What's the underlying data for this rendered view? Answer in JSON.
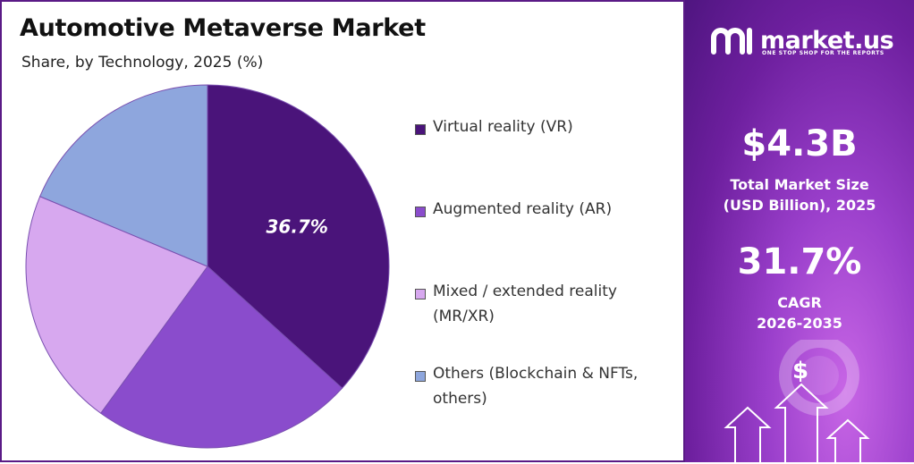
{
  "title": "Automotive Metaverse Market",
  "subtitle": "Share, by Technology, 2025 (%)",
  "chart_data": {
    "type": "pie",
    "categories": [
      "Virtual reality (VR)",
      "Augmented reality (AR)",
      "Mixed / extended reality (MR/XR)",
      "Others (Blockchain & NFTs, others)"
    ],
    "values": [
      36.7,
      23.3,
      21.3,
      18.7
    ],
    "colors": [
      "#4a147a",
      "#8a4ccc",
      "#d7a8ef",
      "#8ea6dd"
    ],
    "data_labels": [
      "36.7%",
      "",
      "",
      ""
    ],
    "legend": {
      "placement": "right",
      "items": [
        {
          "lines": [
            "Virtual reality (VR)"
          ],
          "color": "#4a147a"
        },
        {
          "lines": [
            "Augmented reality (AR)"
          ],
          "color": "#8a4ccc"
        },
        {
          "lines": [
            "Mixed / extended reality",
            "(MR/XR)"
          ],
          "color": "#d7a8ef"
        },
        {
          "lines": [
            "Others (Blockchain & NFTs,",
            "others)"
          ],
          "color": "#8ea6dd"
        }
      ]
    }
  },
  "panel": {
    "brand": "market.us",
    "tagline": "ONE STOP SHOP FOR THE REPORTS",
    "market_size_value": "$4.3B",
    "market_size_label_1": "Total Market Size",
    "market_size_label_2": "(USD Billion), 2025",
    "cagr_value": "31.7%",
    "cagr_label_1": "CAGR",
    "cagr_label_2": "2026-2035",
    "dollar_symbol": "$",
    "icons": [
      "logo-icon",
      "dollar-icon",
      "up-arrow-icon"
    ],
    "background_colors": [
      "#4f1580",
      "#9a3fcb",
      "#c866e6"
    ]
  }
}
